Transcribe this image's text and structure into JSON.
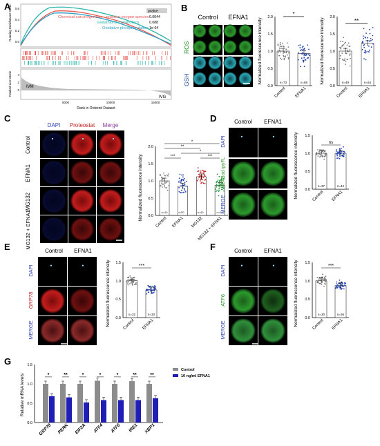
{
  "panels": {
    "A": {
      "letter": "A",
      "legend_header": "pvalue",
      "ylabel_top": "Running Enrichment Score",
      "ylabel_bottom": "Ranked List Metric",
      "xlabel": "Rank in Ordered Dataset",
      "left_label": "IVM",
      "right_label": "IVG",
      "ticks_top": [
        "0.6",
        "0.4",
        "0.2",
        "0.0"
      ],
      "ticks_bottom": [
        "4",
        "2",
        "0"
      ],
      "ticks_x": [
        "5000",
        "10000",
        "15000"
      ],
      "series": [
        {
          "name": "Chemical carcinogenesis - reactive oxygen species",
          "pvalue": "0.0044",
          "color": "#e8564d"
        },
        {
          "name": "Glutathione metabolism",
          "pvalue": "0.088",
          "color": "#2bb5aa"
        },
        {
          "name": "Oxidative phosphorylation",
          "pvalue": "1e-04",
          "color": "#2e9fc6"
        }
      ]
    },
    "B": {
      "letter": "B",
      "col_labels": [
        "Control",
        "EFNA1"
      ],
      "row_labels": [
        "ROS",
        "GSH"
      ],
      "ylabel": "Normalized fluorescence intensity",
      "chart1": {
        "sig": "*",
        "n": [
          "n=73",
          "n=68"
        ],
        "ticks": [
          "2.0",
          "1.5",
          "1.0",
          "0.5",
          "0.0"
        ]
      },
      "chart2": {
        "sig": "**",
        "n": [
          "n=49",
          "n=54"
        ],
        "ticks": [
          "2.0",
          "1.5",
          "1.0",
          "0.5",
          "0.0"
        ]
      },
      "categories": [
        "Control",
        "EFNA1"
      ]
    },
    "C": {
      "letter": "C",
      "col_labels": [
        "DAPI",
        "Proteostat",
        "Merge"
      ],
      "row_labels": [
        "Control",
        "EFNA1",
        "MG132",
        "MG132 + EFNA1"
      ],
      "ylabel": "Normalized fluorescence intensity",
      "categories": [
        "Control",
        "EFNA1",
        "MG132",
        "MG132 + EFNA1"
      ],
      "n": [
        "n=40",
        "n=50",
        "n=40",
        "n=40"
      ],
      "ticks": [
        "2.0",
        "1.5",
        "1.0",
        "0.5",
        "0.0"
      ],
      "sig": [
        "***",
        "*",
        "**",
        "*",
        "***"
      ]
    },
    "D": {
      "letter": "D",
      "col_labels": [
        "Control",
        "EFNA1"
      ],
      "row_labels": [
        "DAPI",
        "Me4Bod ipyFL",
        "MERGE"
      ],
      "ylabel": "Normalized fluorescence intensity",
      "categories": [
        "Control",
        "EFNA1"
      ],
      "n": [
        "n=37",
        "n=42"
      ],
      "sig": "ns",
      "ticks": [
        "1.5",
        "1.0",
        "0.5",
        "0.0"
      ]
    },
    "E": {
      "letter": "E",
      "col_labels": [
        "Control",
        "EFNA1"
      ],
      "row_labels": [
        "DAPI",
        "GRP78",
        "MERGE"
      ],
      "ylabel": "Normalized fluorescence intensity",
      "categories": [
        "Control",
        "EFNA1"
      ],
      "n": [
        "n=32",
        "n=33"
      ],
      "sig": "***",
      "ticks": [
        "1.5",
        "1.0",
        "0.5",
        "0.0"
      ]
    },
    "F": {
      "letter": "F",
      "col_labels": [
        "Control",
        "EFNA1"
      ],
      "row_labels": [
        "DAPI",
        "ATF6",
        "MERGE"
      ],
      "ylabel": "Normalized fluorescence intensity",
      "categories": [
        "Control",
        "EFNA1"
      ],
      "n": [
        "n=30",
        "n=36"
      ],
      "sig": "***",
      "ticks": [
        "1.5",
        "1.0",
        "0.5",
        "0.0"
      ]
    },
    "G": {
      "letter": "G",
      "ylabel": "Relative mRNA levels",
      "ticks": [
        "1.5",
        "1.0",
        "0.5",
        "0.0"
      ],
      "legend": [
        "Control",
        "10 ng/ml EFNA1"
      ],
      "genes": [
        "GRP78",
        "PERK",
        "EIF2A",
        "ATF4",
        "ATF6",
        "IRE1",
        "XBP1"
      ],
      "sig": [
        "*",
        "**",
        "*",
        "*",
        "*",
        "**",
        "**"
      ]
    }
  },
  "chart_data": [
    {
      "type": "bar",
      "panel": "B-ROS",
      "categories": [
        "Control",
        "EFNA1"
      ],
      "values": [
        1.0,
        0.93
      ],
      "ylim": [
        0,
        2.0
      ],
      "ylabel": "Normalized fluorescence intensity"
    },
    {
      "type": "bar",
      "panel": "B-GSH",
      "categories": [
        "Control",
        "EFNA1"
      ],
      "values": [
        1.0,
        1.22
      ],
      "ylim": [
        0,
        2.0
      ],
      "ylabel": "Normalized fluorescence intensity"
    },
    {
      "type": "bar",
      "panel": "C",
      "categories": [
        "Control",
        "EFNA1",
        "MG132",
        "MG132 + EFNA1"
      ],
      "values": [
        1.0,
        0.85,
        1.12,
        0.87
      ],
      "ylim": [
        0,
        2.0
      ],
      "ylabel": "Normalized fluorescence intensity"
    },
    {
      "type": "bar",
      "panel": "D",
      "categories": [
        "Control",
        "EFNA1"
      ],
      "values": [
        1.0,
        1.0
      ],
      "ylim": [
        0,
        1.5
      ],
      "ylabel": "Normalized fluorescence intensity"
    },
    {
      "type": "bar",
      "panel": "E",
      "categories": [
        "Control",
        "EFNA1"
      ],
      "values": [
        1.0,
        0.75
      ],
      "ylim": [
        0,
        1.5
      ],
      "ylabel": "Normalized fluorescence intensity"
    },
    {
      "type": "bar",
      "panel": "F",
      "categories": [
        "Control",
        "EFNA1"
      ],
      "values": [
        1.0,
        0.87
      ],
      "ylim": [
        0,
        1.5
      ],
      "ylabel": "Normalized fluorescence intensity"
    },
    {
      "type": "bar",
      "panel": "G",
      "categories": [
        "GRP78",
        "PERK",
        "EIF2A",
        "ATF4",
        "ATF6",
        "IRE1",
        "XBP1"
      ],
      "series": [
        {
          "name": "Control",
          "values": [
            1.0,
            1.0,
            1.0,
            1.08,
            1.0,
            1.07,
            1.0
          ],
          "color": "#8c8c8c"
        },
        {
          "name": "10 ng/ml EFNA1",
          "values": [
            0.68,
            0.65,
            0.52,
            0.58,
            0.58,
            0.58,
            0.63
          ],
          "color": "#1f1fb8"
        }
      ],
      "ylim": [
        0,
        1.5
      ],
      "ylabel": "Relative mRNA levels"
    }
  ]
}
